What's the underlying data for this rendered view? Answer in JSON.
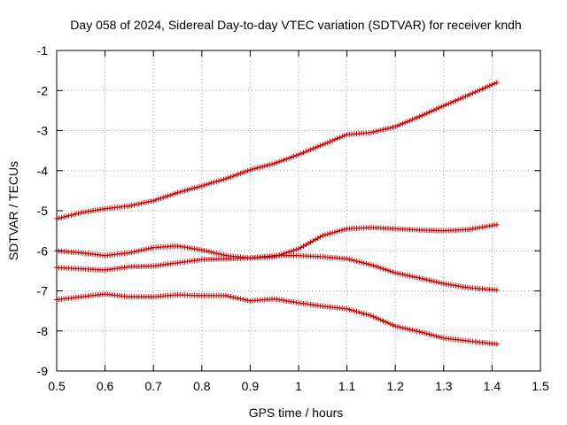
{
  "chart_data": {
    "type": "line",
    "title": "Day 058 of 2024, Sidereal Day-to-day VTEC variation (SDTVAR) for receiver kndh",
    "xlabel": "GPS time / hours",
    "ylabel": "SDTVAR / TECUs",
    "xlim": [
      0.5,
      1.5
    ],
    "ylim": [
      -9,
      -1
    ],
    "xticks": [
      "0.5",
      "0.6",
      "0.7",
      "0.8",
      "0.9",
      "1",
      "1.1",
      "1.2",
      "1.3",
      "1.4",
      "1.5"
    ],
    "yticks": [
      "-1",
      "-2",
      "-3",
      "-4",
      "-5",
      "-6",
      "-7",
      "-8",
      "-9"
    ],
    "grid": true,
    "marker": "plus",
    "color": "#cc0000",
    "series": [
      {
        "name": "series-1",
        "x": [
          0.5,
          0.55,
          0.6,
          0.65,
          0.7,
          0.75,
          0.8,
          0.85,
          0.9,
          0.95,
          1.0,
          1.05,
          1.1,
          1.15,
          1.2,
          1.25,
          1.3,
          1.35,
          1.41
        ],
        "y": [
          -5.2,
          -5.05,
          -4.95,
          -4.88,
          -4.75,
          -4.55,
          -4.38,
          -4.2,
          -3.98,
          -3.82,
          -3.6,
          -3.35,
          -3.1,
          -3.05,
          -2.9,
          -2.65,
          -2.38,
          -2.12,
          -1.8
        ]
      },
      {
        "name": "series-2",
        "x": [
          0.5,
          0.55,
          0.6,
          0.65,
          0.7,
          0.75,
          0.8,
          0.85,
          0.9,
          0.95,
          1.0,
          1.05,
          1.1,
          1.15,
          1.2,
          1.25,
          1.3,
          1.35,
          1.41
        ],
        "y": [
          -6.0,
          -6.05,
          -6.12,
          -6.05,
          -5.92,
          -5.88,
          -5.98,
          -6.12,
          -6.18,
          -6.15,
          -5.95,
          -5.62,
          -5.45,
          -5.42,
          -5.45,
          -5.48,
          -5.5,
          -5.47,
          -5.35
        ]
      },
      {
        "name": "series-3",
        "x": [
          0.5,
          0.55,
          0.6,
          0.65,
          0.7,
          0.75,
          0.8,
          0.85,
          0.9,
          0.95,
          1.0,
          1.05,
          1.1,
          1.15,
          1.2,
          1.25,
          1.3,
          1.35,
          1.41
        ],
        "y": [
          -6.42,
          -6.45,
          -6.48,
          -6.4,
          -6.38,
          -6.3,
          -6.22,
          -6.2,
          -6.18,
          -6.12,
          -6.12,
          -6.15,
          -6.2,
          -6.35,
          -6.55,
          -6.68,
          -6.82,
          -6.92,
          -6.98
        ]
      },
      {
        "name": "series-4",
        "x": [
          0.5,
          0.55,
          0.6,
          0.65,
          0.7,
          0.75,
          0.8,
          0.85,
          0.9,
          0.95,
          1.0,
          1.05,
          1.1,
          1.15,
          1.2,
          1.25,
          1.3,
          1.35,
          1.41
        ],
        "y": [
          -7.22,
          -7.15,
          -7.08,
          -7.15,
          -7.15,
          -7.1,
          -7.12,
          -7.12,
          -7.25,
          -7.2,
          -7.3,
          -7.38,
          -7.45,
          -7.62,
          -7.88,
          -8.02,
          -8.18,
          -8.25,
          -8.33
        ]
      }
    ]
  }
}
